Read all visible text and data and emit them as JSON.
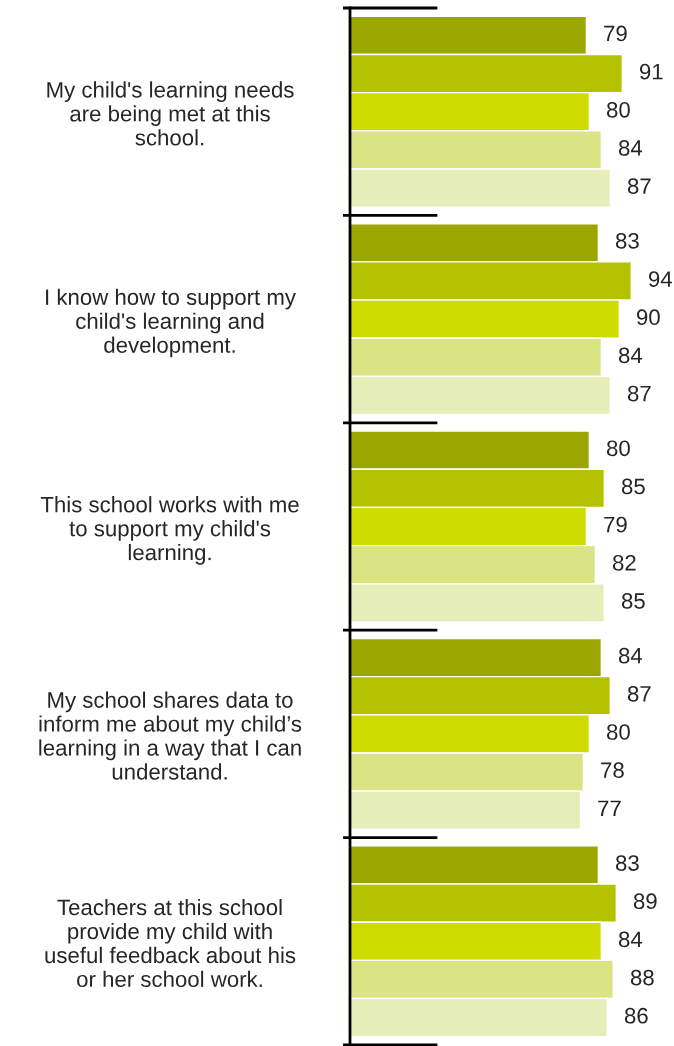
{
  "chart_data": {
    "type": "bar",
    "orientation": "horizontal",
    "data_labels": true,
    "legend": false,
    "grid": false,
    "tick_labels": "y",
    "categories": [
      "My child's learning needs\nare being met at this\nschool.",
      "I know how to support my\nchild's learning and\ndevelopment.",
      "This school works with me\nto support my child's\nlearning.",
      "My school shares data to\ninform me about my child’s\nlearning in a way that I can\nunderstand.",
      "Teachers at this school\nprovide my child with\nuseful feedback about his\nor her school work."
    ],
    "series": [
      {
        "color": "#9ca600",
        "values": [
          79,
          83,
          80,
          84,
          83
        ]
      },
      {
        "color": "#b5c200",
        "values": [
          91,
          94,
          85,
          87,
          89
        ]
      },
      {
        "color": "#cfdc00",
        "values": [
          80,
          90,
          79,
          80,
          84
        ]
      },
      {
        "color": "#dbe484",
        "values": [
          84,
          84,
          82,
          78,
          88
        ]
      },
      {
        "color": "#e5edb8",
        "values": [
          87,
          87,
          85,
          77,
          86
        ]
      }
    ]
  }
}
